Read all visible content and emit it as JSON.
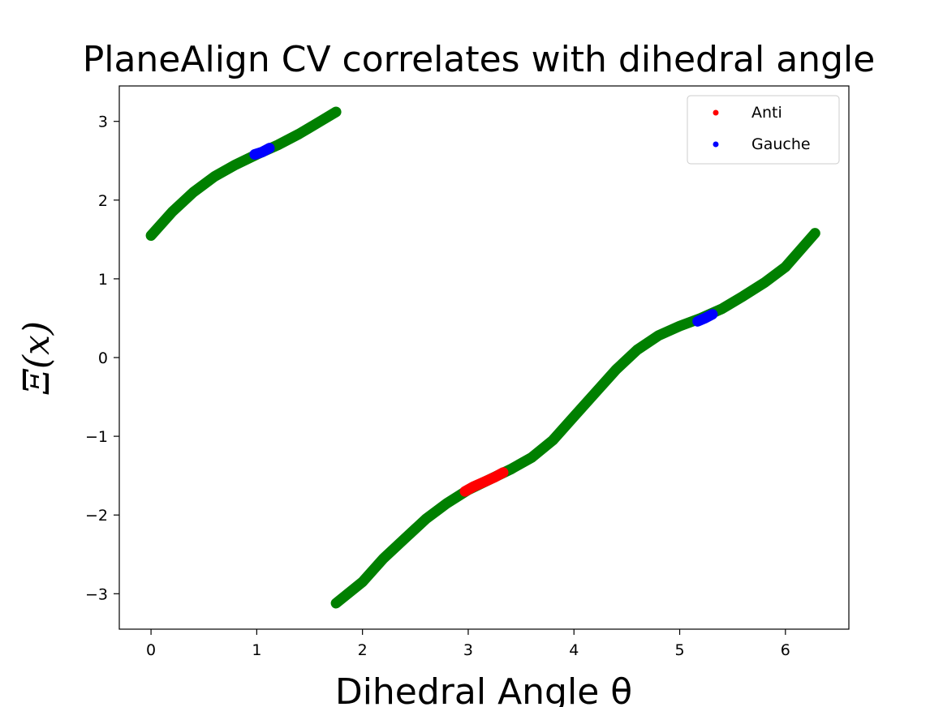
{
  "chart_data": {
    "type": "scatter",
    "title": "PlaneAlign CV correlates with dihedral angle",
    "xlabel": "Dihedral Angle θ",
    "ylabel": "Ξ(x)",
    "xlim": [
      -0.3,
      6.6
    ],
    "ylim": [
      -3.45,
      3.45
    ],
    "x_ticks": [
      0,
      1,
      2,
      3,
      4,
      5,
      6
    ],
    "y_ticks": [
      -3,
      -2,
      -1,
      0,
      1,
      2,
      3
    ],
    "x_tick_labels": [
      "0",
      "1",
      "2",
      "3",
      "4",
      "5",
      "6"
    ],
    "y_tick_labels": [
      "−3",
      "−2",
      "−1",
      "0",
      "1",
      "2",
      "3"
    ],
    "grid": false,
    "legend_position": "top-right",
    "legend": [
      {
        "label": "Anti",
        "color": "#ff0000"
      },
      {
        "label": "Gauche",
        "color": "#0000ff"
      }
    ],
    "series": [
      {
        "color": "#008000",
        "segments": [
          {
            "x": [
              0.0,
              0.2,
              0.4,
              0.6,
              0.8,
              1.0,
              1.2,
              1.4,
              1.6,
              1.75
            ],
            "y": [
              1.55,
              1.85,
              2.1,
              2.3,
              2.45,
              2.58,
              2.7,
              2.84,
              3.0,
              3.12
            ]
          },
          {
            "x": [
              1.75,
              2.0,
              2.2,
              2.4,
              2.6,
              2.8,
              3.0,
              3.2,
              3.4,
              3.6,
              3.8,
              4.0,
              4.2,
              4.4,
              4.6,
              4.8,
              5.0,
              5.2,
              5.4,
              5.6,
              5.8,
              6.0,
              6.28
            ],
            "y": [
              -3.12,
              -2.85,
              -2.55,
              -2.3,
              -2.05,
              -1.85,
              -1.68,
              -1.55,
              -1.42,
              -1.27,
              -1.05,
              -0.75,
              -0.45,
              -0.15,
              0.1,
              0.28,
              0.4,
              0.5,
              0.62,
              0.78,
              0.95,
              1.15,
              1.58
            ]
          }
        ]
      },
      {
        "name": "Anti",
        "color": "#ff0000",
        "segments": [
          {
            "x": [
              2.97,
              3.05,
              3.15,
              3.25,
              3.33
            ],
            "y": [
              -1.7,
              -1.64,
              -1.58,
              -1.52,
              -1.46
            ]
          }
        ]
      },
      {
        "name": "Gauche",
        "color": "#0000ff",
        "segments": [
          {
            "x": [
              0.98,
              1.05,
              1.12
            ],
            "y": [
              2.58,
              2.61,
              2.66
            ]
          },
          {
            "x": [
              5.17,
              5.24,
              5.31
            ],
            "y": [
              0.46,
              0.5,
              0.55
            ]
          }
        ]
      }
    ]
  }
}
